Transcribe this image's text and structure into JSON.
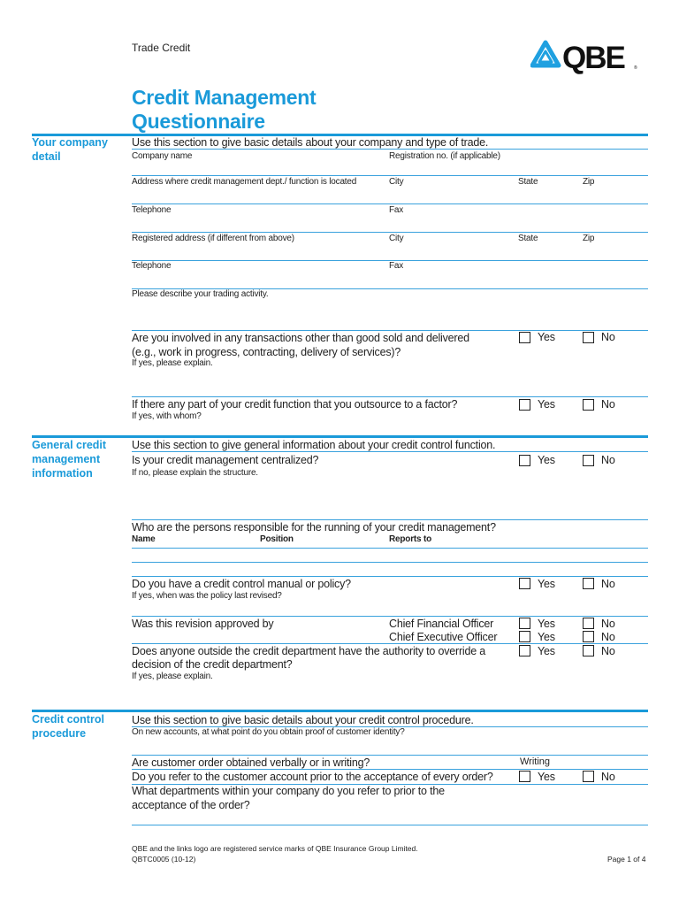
{
  "header": {
    "doc_type": "Trade Credit",
    "logo_text": "QBE",
    "logo_mark": "®",
    "title_line1": "Credit Management",
    "title_line2": "Questionnaire"
  },
  "colors": {
    "accent": "#1a9ad9",
    "rule": "#3aa2dd"
  },
  "section1": {
    "label": "Your company detail",
    "intro": "Use this section to give basic details about your company and type of trade.",
    "company_name": "Company name",
    "registration": "Registration no. (if applicable)",
    "address": "Address where credit management dept./ function is located",
    "city": "City",
    "state": "State",
    "zip": "Zip",
    "telephone": "Telephone",
    "fax": "Fax",
    "registered_address": "Registered address (if different from above)",
    "trading_activity": "Please describe your trading activity.",
    "q_other_line1": "Are you involved in any transactions other than good sold and delivered",
    "q_other_line2": "(e.g., work in progress, contracting, delivery of services)?",
    "q_other_hint": "If yes, please explain.",
    "q_factor": "If there any part of your credit function that you outsource to a factor?",
    "q_factor_hint": "If yes, with whom?"
  },
  "section2": {
    "label": "General credit management information",
    "intro": "Use this section to give general information about your credit control function.",
    "q_central": "Is your credit management centralized?",
    "q_central_hint": "If no, please explain the structure.",
    "q_persons": "Who are the persons responsible for the running of your credit management?",
    "col_name": "Name",
    "col_position": "Position",
    "col_reports": "Reports to",
    "q_manual": "Do you have a credit control manual or policy?",
    "q_manual_hint": "If yes, when was the policy last revised?",
    "q_approved": "Was this revision approved by",
    "cfo": "Chief Financial Officer",
    "ceo": "Chief Executive Officer",
    "q_override_line1": "Does anyone outside the credit department have the authority to override a",
    "q_override_line2": "decision of the credit department?",
    "q_override_hint": "If yes, please explain."
  },
  "section3": {
    "label": "Credit control procedure",
    "intro": "Use this section to give basic details about your credit control procedure.",
    "q_identity": "On new accounts, at what point do you obtain proof of customer identity?",
    "q_verbal": "Are customer order obtained verbally or in writing?",
    "writing": "Writing",
    "q_refer": "Do you refer to the customer account prior to the acceptance of every order?",
    "q_departments_line1": "What departments within your company do you refer to prior to the",
    "q_departments_line2": "acceptance of the order?"
  },
  "options": {
    "yes": "Yes",
    "no": "No"
  },
  "footer": {
    "trademark": "QBE and the links logo are registered service marks of QBE Insurance Group Limited.",
    "form_code": "QBTC0005 (10-12)",
    "page": "Page 1 of 4"
  }
}
